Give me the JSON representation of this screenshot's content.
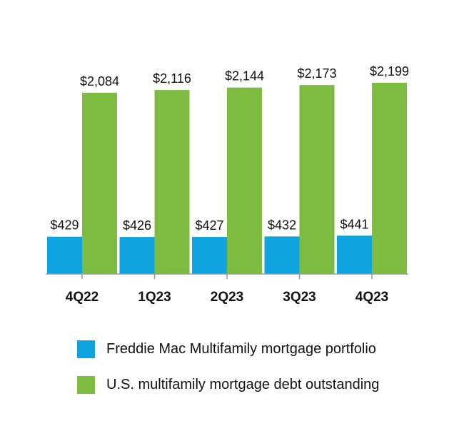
{
  "chart_data": {
    "type": "bar",
    "categories": [
      "4Q22",
      "1Q23",
      "2Q23",
      "3Q23",
      "4Q23"
    ],
    "series": [
      {
        "name": "Freddie Mac Multifamily mortgage portfolio",
        "values": [
          429,
          426,
          427,
          432,
          441
        ],
        "labels": [
          "$429",
          "$426",
          "$427",
          "$432",
          "$441"
        ],
        "color": "#0fa3e0"
      },
      {
        "name": "U.S. multifamily mortgage debt outstanding",
        "values": [
          2084,
          2116,
          2144,
          2173,
          2199
        ],
        "labels": [
          "$2,084",
          "$2,116",
          "$2,144",
          "$2,173",
          "$2,199"
        ],
        "color": "#7dbb42"
      }
    ],
    "title": "",
    "xlabel": "",
    "ylabel": "",
    "ylim": [
      0,
      2200
    ],
    "grid": false,
    "legend_position": "bottom",
    "axis_color": "#999999"
  }
}
